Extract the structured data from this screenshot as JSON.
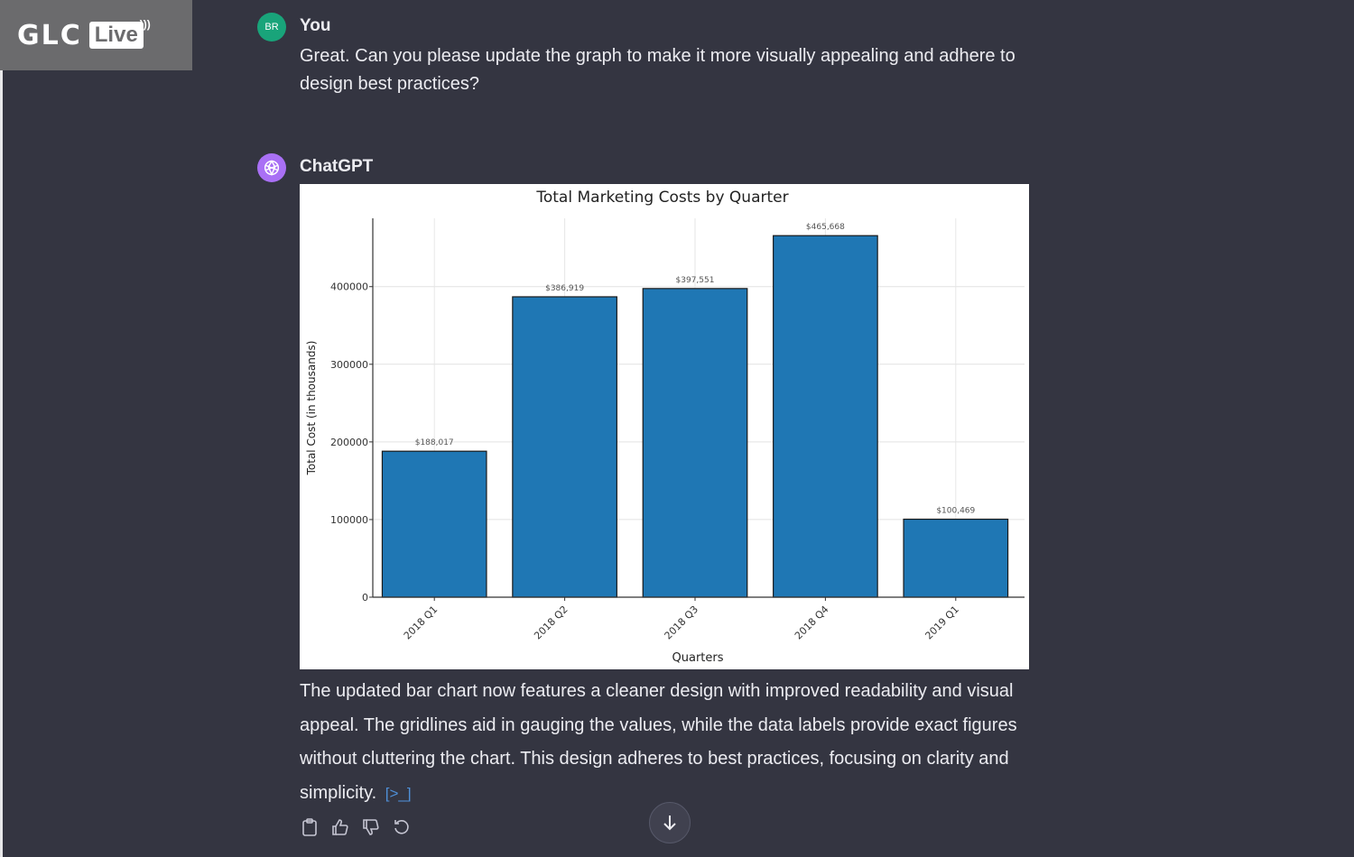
{
  "logo": {
    "brand": "GLC",
    "badge": "Live"
  },
  "user": {
    "avatar_initials": "BR",
    "name": "You",
    "message": "Great. Can you please update the graph to make it more visually appealing and adhere to design best practices?"
  },
  "assistant": {
    "name": "ChatGPT",
    "reply": "The updated bar chart now features a cleaner design with improved readability and visual appeal. The gridlines aid in gauging the values, while the data labels provide exact figures without cluttering the chart. This design adheres to best practices, focusing on clarity and simplicity.",
    "code_link_label": "[>_]"
  },
  "icons": {
    "copy": "clipboard-icon",
    "thumbs_up": "thumbs-up-icon",
    "thumbs_down": "thumbs-down-icon",
    "regenerate": "regenerate-icon",
    "scroll_down": "arrow-down-icon"
  },
  "colors": {
    "background": "#343541",
    "bar": "#1f77b4",
    "user_avatar": "#19a47a",
    "gpt_avatar": "#a970f5"
  },
  "chart_data": {
    "type": "bar",
    "title": "Total Marketing Costs by Quarter",
    "xlabel": "Quarters",
    "ylabel": "Total Cost (in thousands)",
    "categories": [
      "2018 Q1",
      "2018 Q2",
      "2018 Q3",
      "2018 Q4",
      "2019 Q1"
    ],
    "values": [
      188017,
      386919,
      397551,
      465668,
      100469
    ],
    "data_labels": [
      "$188,017",
      "$386,919",
      "$397,551",
      "$465,668",
      "$100,469"
    ],
    "yticks": [
      "0",
      "100000",
      "200000",
      "300000",
      "400000"
    ],
    "ylim": [
      0,
      488000
    ],
    "grid": true
  }
}
